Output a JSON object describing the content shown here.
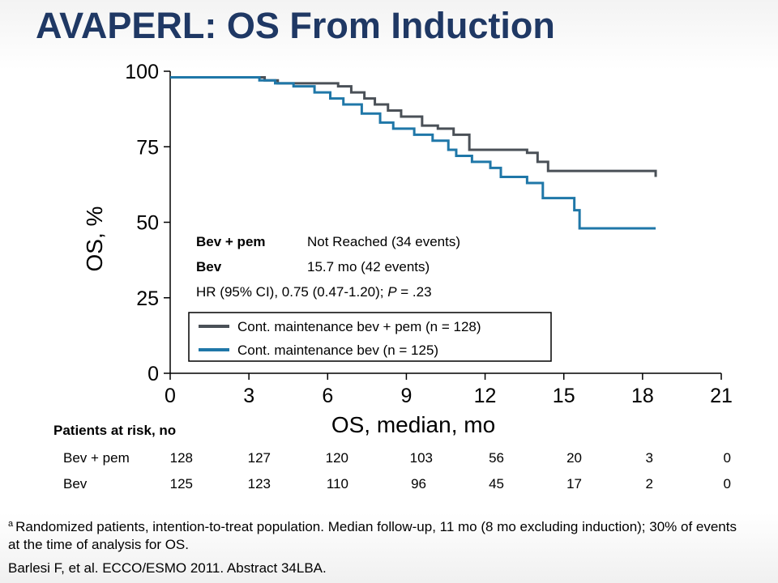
{
  "slide": {
    "title": "AVAPERL: OS From Induction",
    "footnote_marker": "a",
    "footnote": "Randomized patients, intention-to-treat population. Median follow-up, 11 mo (8 mo excluding induction); 30% of events at the time of analysis for OS.",
    "citation": "Barlesi F, et al. ECCO/ESMO 2011. Abstract 34LBA."
  },
  "stats": {
    "row1_label": "Bev + pem",
    "row1_value": "Not Reached (34 events)",
    "row2_label": "Bev",
    "row2_value": "15.7 mo (42 events)",
    "hr_prefix": "HR (95% CI), 0.75 (0.47-1.20); ",
    "hr_p_label": "P",
    "hr_p_value": " = .23"
  },
  "risk_table": {
    "title": "Patients at risk, no",
    "rows": [
      {
        "label": "Bev + pem",
        "values": [
          "128",
          "127",
          "120",
          "103",
          "56",
          "20",
          "3",
          "0"
        ]
      },
      {
        "label": "Bev",
        "values": [
          "125",
          "123",
          "110",
          "96",
          "45",
          "17",
          "2",
          "0"
        ]
      }
    ]
  },
  "chart_data": {
    "type": "line",
    "title": "",
    "xlabel": "OS, median, mo",
    "ylabel": "OS, %",
    "xlim": [
      0,
      21
    ],
    "ylim": [
      0,
      100
    ],
    "x_ticks": [
      0,
      3,
      6,
      9,
      12,
      15,
      18,
      21
    ],
    "y_ticks": [
      0,
      25,
      50,
      75,
      100
    ],
    "legend_placement": "bottom-center",
    "grid": false,
    "series": [
      {
        "name": "Cont. maintenance bev + pem (n = 128)",
        "color": "#4a5057",
        "step": true,
        "x": [
          0,
          3.0,
          3.6,
          4.1,
          5.8,
          6.4,
          6.9,
          7.4,
          7.8,
          8.3,
          8.8,
          9.6,
          10.2,
          10.8,
          11.4,
          13.1,
          13.6,
          14.0,
          14.4,
          18.5
        ],
        "y": [
          98,
          98,
          97,
          96,
          96,
          95,
          93,
          91,
          89,
          87,
          85,
          82,
          81,
          79,
          74,
          74,
          73,
          70,
          67,
          65
        ]
      },
      {
        "name": "Cont. maintenance bev (n = 125)",
        "color": "#1f77a8",
        "step": true,
        "x": [
          0,
          2.9,
          3.4,
          4.0,
          4.7,
          5.5,
          6.1,
          6.6,
          7.3,
          8.0,
          8.5,
          9.3,
          10.0,
          10.6,
          10.9,
          11.5,
          12.2,
          12.6,
          13.6,
          14.2,
          15.4,
          15.6,
          18.5
        ],
        "y": [
          98,
          98,
          97,
          96,
          95,
          93,
          91,
          89,
          86,
          83,
          81,
          79,
          77,
          74,
          72,
          70,
          68,
          65,
          63,
          58,
          54,
          48,
          48
        ]
      }
    ]
  }
}
